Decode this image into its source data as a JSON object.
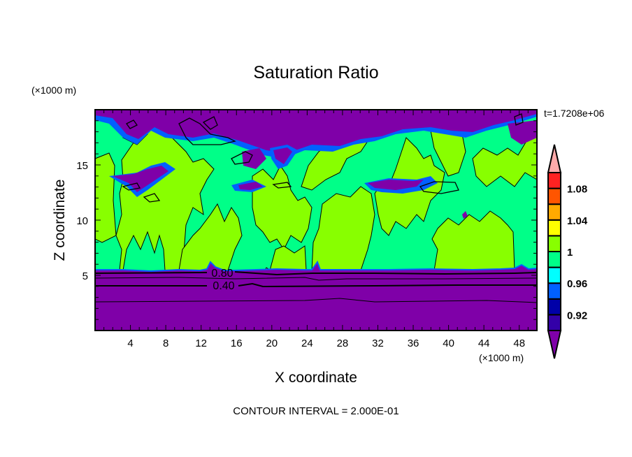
{
  "chart_data": {
    "type": "heatmap",
    "subtype": "filled-contour",
    "title": "Saturation Ratio",
    "xlabel": "X coordinate",
    "ylabel": "Z coordinate",
    "x_units": "(×1000 m)",
    "y_units": "(×1000 m)",
    "time_label": "t=1.7208e+06",
    "footer": "CONTOUR INTERVAL = 2.000E-01",
    "xlim": [
      0,
      50
    ],
    "ylim": [
      0,
      20
    ],
    "x_ticks": [
      4,
      8,
      12,
      16,
      20,
      24,
      28,
      32,
      36,
      40,
      44,
      48
    ],
    "y_ticks": [
      5,
      10,
      15
    ],
    "contour_labels": [
      "0.80",
      "0.40"
    ],
    "colorbar": {
      "levels": [
        0.9,
        0.92,
        0.94,
        0.96,
        0.98,
        1.0,
        1.02,
        1.04,
        1.06,
        1.08,
        1.1
      ],
      "tick_labels": [
        "1.08",
        "1.04",
        "1",
        "0.96",
        "0.92"
      ],
      "tick_values": [
        1.08,
        1.04,
        1.0,
        0.96,
        0.92
      ],
      "colors": [
        "#3300a8",
        "#0000a8",
        "#0060ff",
        "#00ffff",
        "#00ff88",
        "#88ff00",
        "#ffff00",
        "#ffaa00",
        "#ff5500",
        "#ff2222"
      ],
      "over_color": "#ffaaaa",
      "under_color": "#7f00a8"
    }
  }
}
